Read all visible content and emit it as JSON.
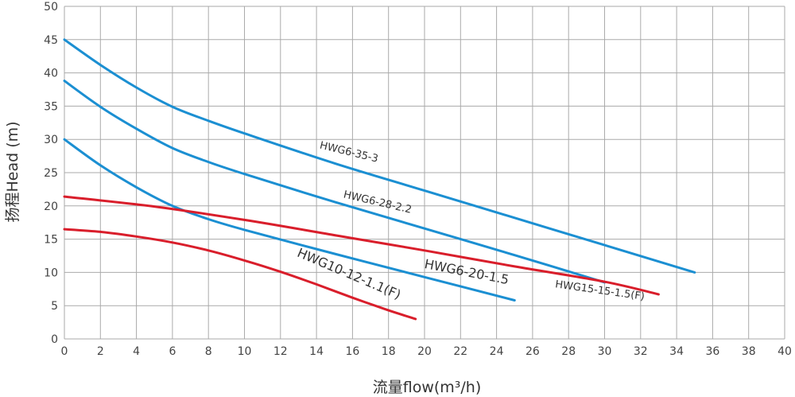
{
  "chart_data": {
    "type": "line",
    "title": "",
    "xlabel": "流量flow(m³/h)",
    "ylabel": "扬程Head (m)",
    "xlim": [
      0,
      40
    ],
    "ylim": [
      0,
      50
    ],
    "x_ticks": [
      0,
      2,
      4,
      6,
      8,
      10,
      12,
      14,
      16,
      18,
      20,
      22,
      24,
      26,
      28,
      30,
      32,
      34,
      36,
      38,
      40
    ],
    "y_ticks": [
      0,
      5,
      10,
      15,
      20,
      25,
      30,
      35,
      40,
      45,
      50
    ],
    "grid": true,
    "legend": "none",
    "series": [
      {
        "name": "HWG6-35-3",
        "color": "#1b8fd2",
        "x": [
          0,
          2,
          4,
          6,
          8,
          10,
          15,
          20,
          25,
          30,
          35
        ],
        "y": [
          45.0,
          41.2,
          37.8,
          34.9,
          32.8,
          30.9,
          26.4,
          22.3,
          18.2,
          14.1,
          10.0
        ]
      },
      {
        "name": "HWG6-28-2.2",
        "color": "#1b8fd2",
        "x": [
          0,
          2,
          4,
          6,
          8,
          10,
          15,
          20,
          25,
          30
        ],
        "y": [
          38.8,
          34.9,
          31.6,
          28.7,
          26.6,
          24.8,
          20.6,
          16.6,
          12.6,
          8.5
        ]
      },
      {
        "name": "HWG6-20-1.5",
        "color": "#1b8fd2",
        "x": [
          0,
          2,
          4,
          6,
          8,
          10,
          15,
          20,
          25
        ],
        "y": [
          30.0,
          26.1,
          22.8,
          20.0,
          18.0,
          16.4,
          12.8,
          9.3,
          5.8
        ]
      },
      {
        "name": "HWG15-15-1.5(F)",
        "color": "#d91e2b",
        "x": [
          0,
          5,
          10,
          15,
          20,
          25,
          30,
          33
        ],
        "y": [
          21.4,
          19.9,
          17.9,
          15.6,
          13.3,
          10.9,
          8.6,
          6.7
        ]
      },
      {
        "name": "HWG10-12-1.1(F)",
        "color": "#d91e2b",
        "x": [
          0,
          2,
          4,
          6,
          8,
          10,
          12,
          14,
          16,
          18,
          19.5
        ],
        "y": [
          16.5,
          16.1,
          15.4,
          14.5,
          13.3,
          11.8,
          10.1,
          8.2,
          6.2,
          4.3,
          3.0
        ]
      }
    ],
    "annotations": [
      {
        "text": "HWG6-35-3",
        "series": 0
      },
      {
        "text": "HWG6-28-2.2",
        "series": 1
      },
      {
        "text": "HWG6-20-1.5",
        "series": 2
      },
      {
        "text": "HWG15-15-1.5(F)",
        "series": 3
      },
      {
        "text": "HWG10-12-1.1(F)",
        "series": 4
      }
    ]
  }
}
